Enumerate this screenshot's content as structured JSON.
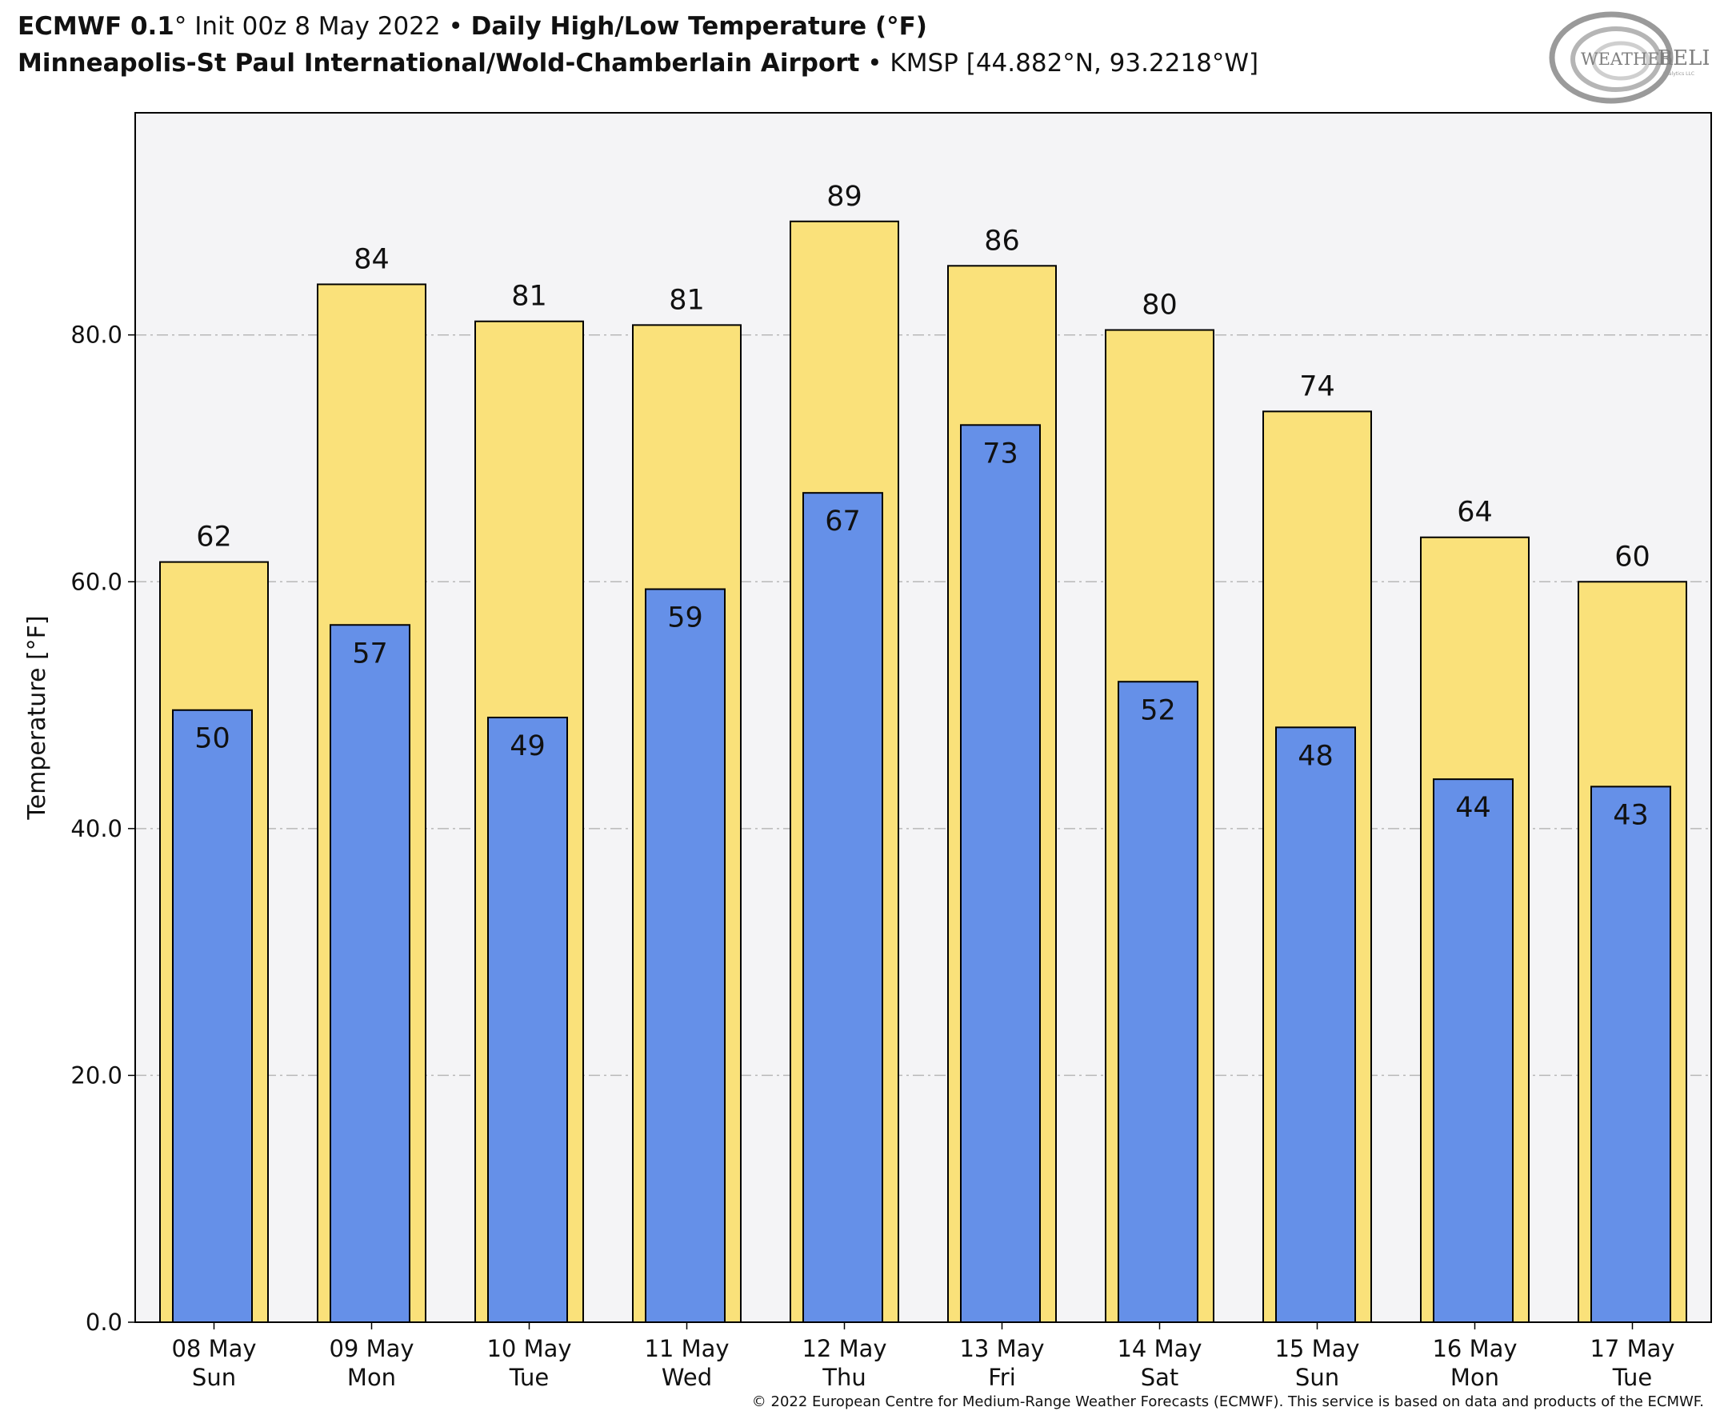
{
  "header": {
    "model": "ECMWF 0.1",
    "model_deg": "°",
    "init": "Init 00z 8 May 2022",
    "bullet1": "•",
    "product": "Daily High/Low Temperature (°F)",
    "station_name": "Minneapolis-St Paul International/Wold-Chamberlain Airport",
    "bullet2": "•",
    "station_info": "KMSP [44.882°N, 93.2218°W]"
  },
  "logo": {
    "text_left": "WEATHER",
    "text_right": "BELL",
    "subtext": "Analytics LLC"
  },
  "copyright": "© 2022 European Centre for Medium-Range Weather Forecasts (ECMWF). This service is based on data and products of the ECMWF.",
  "colors": {
    "high": "#fae17a",
    "low": "#6590e8",
    "plot_bg": "#f4f4f6",
    "grid": "#b8b8b8"
  },
  "chart_data": {
    "type": "bar",
    "ylabel": "Temperature [°F]",
    "ylim": [
      0,
      98
    ],
    "yticks": [
      "0.0",
      "20.0",
      "40.0",
      "60.0",
      "80.0"
    ],
    "ytick_values": [
      0,
      20,
      40,
      60,
      80
    ],
    "grid": true,
    "categories": [
      [
        "08 May",
        "Sun"
      ],
      [
        "09 May",
        "Mon"
      ],
      [
        "10 May",
        "Tue"
      ],
      [
        "11 May",
        "Wed"
      ],
      [
        "12 May",
        "Thu"
      ],
      [
        "13 May",
        "Fri"
      ],
      [
        "14 May",
        "Sat"
      ],
      [
        "15 May",
        "Sun"
      ],
      [
        "16 May",
        "Mon"
      ],
      [
        "17 May",
        "Tue"
      ]
    ],
    "series": [
      {
        "values": [
          61.6,
          84.1,
          81.1,
          80.8,
          89.2,
          85.6,
          80.4,
          73.8,
          63.6,
          60.0
        ],
        "labels": [
          "62",
          "84",
          "81",
          "81",
          "89",
          "86",
          "80",
          "74",
          "64",
          "60"
        ]
      },
      {
        "values": [
          49.6,
          56.5,
          49.0,
          59.4,
          67.2,
          72.7,
          51.9,
          48.2,
          44.0,
          43.4
        ],
        "labels": [
          "50",
          "57",
          "49",
          "59",
          "67",
          "73",
          "52",
          "48",
          "44",
          "43"
        ]
      }
    ]
  }
}
